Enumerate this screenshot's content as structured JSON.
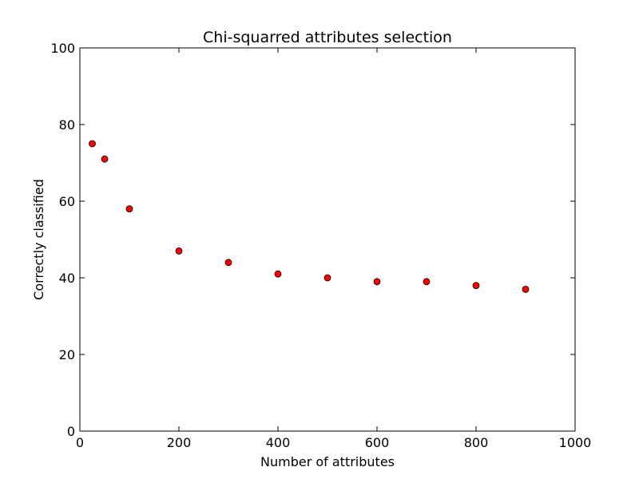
{
  "chart_data": {
    "type": "scatter",
    "title": "Chi-squarred attributes selection",
    "xlabel": "Number of attributes",
    "ylabel": "Correctly classified",
    "xlim": [
      0,
      1000
    ],
    "ylim": [
      0,
      100
    ],
    "xticks": [
      0,
      200,
      400,
      600,
      800,
      1000
    ],
    "yticks": [
      0,
      20,
      40,
      60,
      80,
      100
    ],
    "grid": false,
    "marker_color": "#ff0000",
    "marker_edge_color": "#000000",
    "points": [
      {
        "x": 25,
        "y": 75
      },
      {
        "x": 50,
        "y": 71
      },
      {
        "x": 100,
        "y": 58
      },
      {
        "x": 200,
        "y": 47
      },
      {
        "x": 300,
        "y": 44
      },
      {
        "x": 400,
        "y": 41
      },
      {
        "x": 500,
        "y": 40
      },
      {
        "x": 600,
        "y": 39
      },
      {
        "x": 700,
        "y": 39
      },
      {
        "x": 800,
        "y": 38
      },
      {
        "x": 900,
        "y": 37
      }
    ]
  }
}
